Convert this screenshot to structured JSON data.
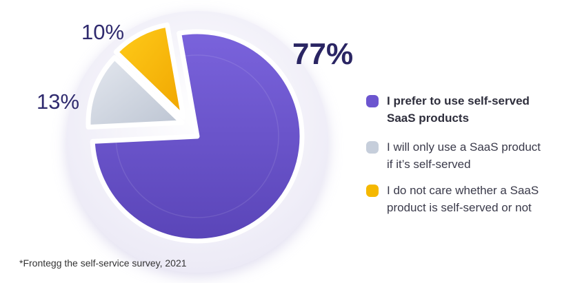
{
  "chart_data": {
    "type": "pie",
    "slices": [
      {
        "label": "I prefer to use self-served SaaS products",
        "value": 77,
        "display": "77%",
        "color": "#6c55cf"
      },
      {
        "label": "I will only use a SaaS product if it’s self-served",
        "value": 13,
        "display": "13%",
        "color": "#c6cedb"
      },
      {
        "label": "I do not care whether a SaaS product is self-served or not",
        "value": 10,
        "display": "10%",
        "color": "#f5b800"
      }
    ],
    "legend_position": "right"
  },
  "legend": [
    {
      "lines": [
        "I prefer to use self-served",
        "SaaS products"
      ],
      "color": "#6c55cf",
      "bold": true
    },
    {
      "lines": [
        "I will only use a SaaS product",
        "if it’s self-served"
      ],
      "color": "#c6cedb",
      "bold": false
    },
    {
      "lines": [
        "I do not care whether a SaaS",
        "product is self-served or not"
      ],
      "color": "#f5b800",
      "bold": false
    }
  ],
  "footnote": "*Frontegg the self-service survey, 2021"
}
